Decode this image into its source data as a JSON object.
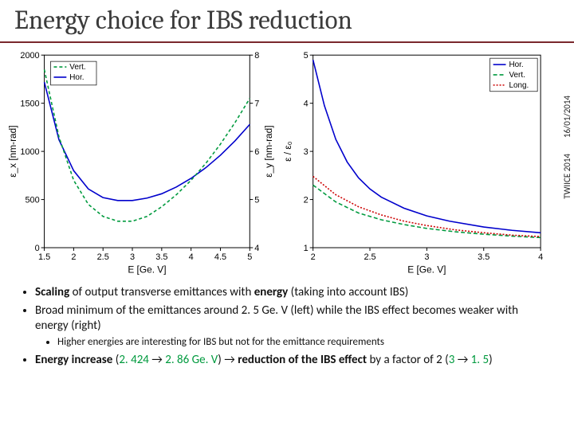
{
  "title": "Energy choice for IBS reduction",
  "side": {
    "date": "16/01/2014",
    "conf": "TWIICE 2014"
  },
  "chart_left": {
    "type": "line",
    "xlabel": "E [Ge. V]",
    "ylabel_left": "ε_x [nm-rad]",
    "ylabel_right": "ε_y [nm-rad]",
    "xlim": [
      1.5,
      5
    ],
    "xtick_step": 0.5,
    "ylim_left": [
      0,
      2000
    ],
    "ytick_left_step": 500,
    "ylim_right": [
      4,
      8
    ],
    "ytick_right_step": 1,
    "grid": false,
    "background_color": "#ffffff",
    "axis_color": "#000000",
    "tick_fontsize": 11,
    "label_fontsize": 12,
    "legend": {
      "pos": "top-left",
      "items": [
        {
          "label": "Vert.",
          "color": "#009a3e",
          "dash": "4 3"
        },
        {
          "label": "Hor.",
          "color": "#0000cc",
          "dash": ""
        }
      ]
    },
    "series_hor": {
      "color": "#0000cc",
      "dash": "",
      "width": 1.6,
      "points": [
        [
          1.5,
          1720
        ],
        [
          1.75,
          1120
        ],
        [
          2,
          800
        ],
        [
          2.25,
          610
        ],
        [
          2.5,
          520
        ],
        [
          2.75,
          490
        ],
        [
          3,
          490
        ],
        [
          3.25,
          515
        ],
        [
          3.5,
          560
        ],
        [
          3.75,
          630
        ],
        [
          4,
          720
        ],
        [
          4.25,
          830
        ],
        [
          4.5,
          960
        ],
        [
          4.75,
          1110
        ],
        [
          5,
          1280
        ]
      ]
    },
    "series_vert": {
      "color": "#009a3e",
      "dash": "4 3",
      "width": 1.6,
      "axis": "right",
      "points": [
        [
          1.5,
          7.7
        ],
        [
          1.75,
          6.3
        ],
        [
          2,
          5.4
        ],
        [
          2.25,
          4.9
        ],
        [
          2.5,
          4.65
        ],
        [
          2.75,
          4.55
        ],
        [
          3,
          4.55
        ],
        [
          3.25,
          4.65
        ],
        [
          3.5,
          4.85
        ],
        [
          3.75,
          5.1
        ],
        [
          4,
          5.4
        ],
        [
          4.25,
          5.75
        ],
        [
          4.5,
          6.15
        ],
        [
          4.75,
          6.6
        ],
        [
          5,
          7.1
        ]
      ]
    }
  },
  "chart_right": {
    "type": "line",
    "xlabel": "E [Ge. V]",
    "ylabel": "ε / ε₀",
    "xlim": [
      2,
      4
    ],
    "xtick_step": 0.5,
    "ylim": [
      1,
      5
    ],
    "ytick_step": 1,
    "axis_color": "#000000",
    "tick_fontsize": 11,
    "label_fontsize": 12,
    "legend": {
      "pos": "top-right",
      "items": [
        {
          "label": "Hor.",
          "color": "#0000cc",
          "dash": ""
        },
        {
          "label": "Vert.",
          "color": "#009a3e",
          "dash": "5 3"
        },
        {
          "label": "Long.",
          "color": "#cc0000",
          "dash": "2 2"
        }
      ]
    },
    "series": [
      {
        "name": "Hor.",
        "color": "#0000cc",
        "dash": "",
        "width": 1.6,
        "points": [
          [
            2,
            4.9
          ],
          [
            2.1,
            3.95
          ],
          [
            2.2,
            3.25
          ],
          [
            2.3,
            2.78
          ],
          [
            2.4,
            2.45
          ],
          [
            2.5,
            2.22
          ],
          [
            2.6,
            2.05
          ],
          [
            2.8,
            1.82
          ],
          [
            3,
            1.66
          ],
          [
            3.2,
            1.55
          ],
          [
            3.5,
            1.43
          ],
          [
            3.75,
            1.36
          ],
          [
            4,
            1.31
          ]
        ]
      },
      {
        "name": "Vert.",
        "color": "#009a3e",
        "dash": "5 3",
        "width": 1.6,
        "points": [
          [
            2,
            2.3
          ],
          [
            2.2,
            1.95
          ],
          [
            2.4,
            1.72
          ],
          [
            2.6,
            1.58
          ],
          [
            2.8,
            1.48
          ],
          [
            3,
            1.4
          ],
          [
            3.25,
            1.33
          ],
          [
            3.5,
            1.28
          ],
          [
            3.75,
            1.24
          ],
          [
            4,
            1.21
          ]
        ]
      },
      {
        "name": "Long.",
        "color": "#cc0000",
        "dash": "2 2",
        "width": 1.6,
        "points": [
          [
            2,
            2.48
          ],
          [
            2.2,
            2.1
          ],
          [
            2.4,
            1.85
          ],
          [
            2.6,
            1.68
          ],
          [
            2.8,
            1.55
          ],
          [
            3,
            1.46
          ],
          [
            3.25,
            1.37
          ],
          [
            3.5,
            1.31
          ],
          [
            3.75,
            1.26
          ],
          [
            4,
            1.23
          ]
        ]
      }
    ]
  },
  "bullets": {
    "b1a": "Scaling",
    "b1b": " of output transverse emittances with ",
    "b1c": "energy",
    "b1d": " (taking into account IBS)",
    "b2": "Broad minimum of the emittances around 2. 5 Ge. V (left) while the IBS effect becomes weaker with energy (right)",
    "b2sub": "Higher energies are interesting for IBS but not for the emittance requirements",
    "b3a": "Energy increase",
    "b3b": " (",
    "b3c": "2. 424",
    "b3d": " → ",
    "b3e": "2. 86 Ge. V",
    "b3f": ") → ",
    "b3g": "reduction of the IBS effect",
    "b3h": " by a factor of 2 (",
    "b3i": "3",
    "b3j": " → ",
    "b3k": "1. 5",
    "b3l": ")"
  }
}
